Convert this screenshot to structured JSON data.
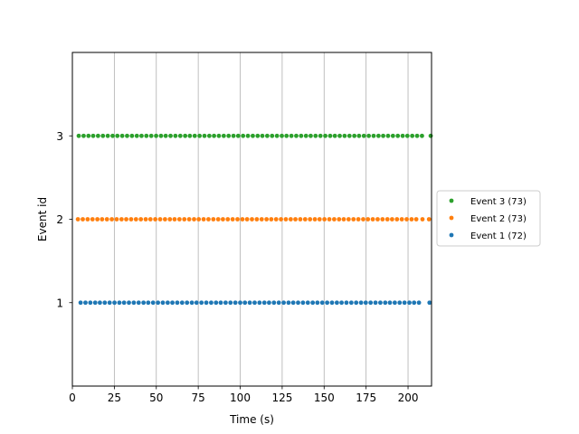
{
  "chart_data": {
    "type": "scatter",
    "xlabel": "Time (s)",
    "ylabel": "Event id",
    "xlim": [
      0,
      214
    ],
    "ylim": [
      0,
      4
    ],
    "x_ticks": [
      0,
      25,
      50,
      75,
      100,
      125,
      150,
      175,
      200
    ],
    "x_tick_labels": [
      "0",
      "25",
      "50",
      "75",
      "100",
      "125",
      "150",
      "175",
      "200"
    ],
    "y_ticks": [
      1,
      2,
      3
    ],
    "y_tick_labels": [
      "1",
      "2",
      "3"
    ],
    "grid": "x-vertical",
    "legend_placement": "right",
    "series": [
      {
        "name": "Event 3 (73)",
        "y": 3,
        "color": "#2ca02c",
        "x": [
          3.8,
          6.7,
          9.6,
          12.4,
          15.3,
          18.2,
          21.1,
          24.0,
          26.8,
          29.7,
          32.6,
          35.5,
          38.4,
          41.2,
          44.1,
          47.0,
          49.9,
          52.8,
          55.6,
          58.5,
          61.4,
          64.3,
          67.2,
          70.0,
          72.9,
          75.8,
          78.7,
          81.6,
          84.4,
          87.3,
          90.2,
          93.1,
          96.0,
          98.8,
          101.7,
          104.6,
          107.5,
          110.4,
          113.2,
          116.1,
          119.0,
          121.9,
          124.8,
          127.6,
          130.5,
          133.4,
          136.3,
          139.2,
          142.0,
          144.9,
          147.8,
          150.7,
          153.6,
          156.4,
          159.3,
          162.2,
          165.1,
          168.0,
          170.8,
          173.7,
          176.6,
          179.5,
          182.4,
          185.2,
          188.1,
          191.0,
          193.9,
          196.8,
          199.6,
          202.5,
          205.4,
          208.3,
          213.5
        ]
      },
      {
        "name": "Event 2 (73)",
        "y": 2,
        "color": "#ff7f0e",
        "x": [
          3.3,
          6.2,
          9.1,
          12.0,
          14.9,
          17.7,
          20.6,
          23.5,
          26.4,
          29.3,
          32.1,
          35.0,
          37.9,
          40.8,
          43.7,
          46.5,
          49.4,
          52.3,
          55.2,
          58.1,
          60.9,
          63.8,
          66.7,
          69.6,
          72.5,
          75.3,
          78.2,
          81.1,
          84.0,
          86.9,
          89.7,
          92.6,
          95.5,
          98.4,
          101.3,
          104.1,
          107.0,
          109.9,
          112.8,
          115.7,
          118.5,
          121.4,
          124.3,
          127.2,
          130.1,
          132.9,
          135.8,
          138.7,
          141.6,
          144.5,
          147.3,
          150.2,
          153.1,
          156.0,
          158.9,
          161.7,
          164.6,
          167.5,
          170.4,
          173.3,
          176.1,
          179.0,
          181.9,
          184.8,
          187.7,
          190.5,
          193.4,
          196.3,
          199.2,
          202.1,
          204.9,
          208.6,
          212.5
        ]
      },
      {
        "name": "Event 1 (72)",
        "y": 1,
        "color": "#1f77b4",
        "x": [
          4.9,
          7.8,
          10.7,
          13.6,
          16.4,
          19.3,
          22.2,
          25.1,
          28.0,
          30.8,
          33.7,
          36.6,
          39.5,
          42.4,
          45.2,
          48.1,
          51.0,
          53.9,
          56.8,
          59.6,
          62.5,
          65.4,
          68.3,
          71.2,
          74.0,
          76.9,
          79.8,
          82.7,
          85.6,
          88.4,
          91.3,
          94.2,
          97.1,
          100.0,
          102.8,
          105.7,
          108.6,
          111.5,
          114.4,
          117.2,
          120.1,
          123.0,
          125.9,
          128.8,
          131.6,
          134.5,
          137.4,
          140.3,
          143.2,
          146.0,
          148.9,
          151.8,
          154.7,
          157.6,
          160.4,
          163.3,
          166.2,
          169.1,
          172.0,
          174.8,
          177.7,
          180.6,
          183.5,
          186.4,
          189.2,
          192.1,
          195.0,
          197.9,
          200.8,
          203.6,
          206.5,
          212.8
        ]
      }
    ]
  }
}
